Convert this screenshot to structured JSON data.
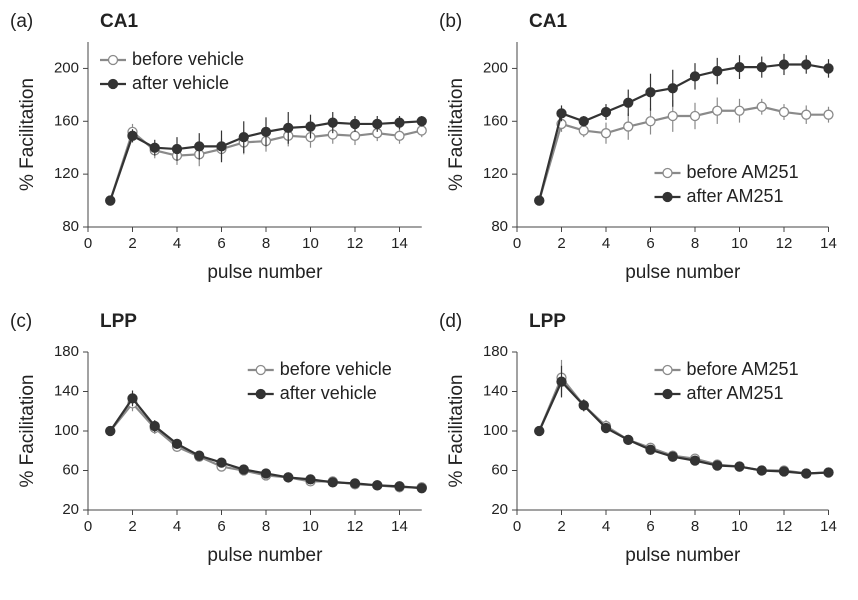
{
  "chart_data": [
    {
      "type": "line",
      "panel": "(a)",
      "title": "CA1",
      "x_label": "pulse number",
      "y_label": "% Facilitation",
      "x": [
        1,
        2,
        3,
        4,
        5,
        6,
        7,
        8,
        9,
        10,
        11,
        12,
        13,
        14,
        15
      ],
      "xlim": [
        0,
        15
      ],
      "xticks": [
        0,
        2,
        4,
        6,
        8,
        10,
        12,
        14
      ],
      "ylim": [
        80,
        220
      ],
      "yticks": [
        80,
        120,
        160,
        200
      ],
      "legend": "top-left",
      "series": [
        {
          "name": "before vehicle",
          "color": "#8a8a8a",
          "marker_fill": "#ffffff",
          "values": [
            100,
            152,
            138,
            134,
            135,
            139,
            144,
            145,
            149,
            148,
            150,
            149,
            151,
            149,
            153
          ],
          "errors": [
            0,
            6,
            6,
            7,
            9,
            8,
            9,
            8,
            8,
            8,
            7,
            7,
            6,
            6,
            5
          ]
        },
        {
          "name": "after vehicle",
          "color": "#333333",
          "marker_fill": "#333333",
          "values": [
            100,
            149,
            140,
            139,
            141,
            141,
            148,
            152,
            155,
            156,
            159,
            158,
            158,
            159,
            160
          ],
          "errors": [
            0,
            5,
            6,
            9,
            10,
            12,
            12,
            11,
            12,
            9,
            8,
            6,
            6,
            5,
            4
          ]
        }
      ]
    },
    {
      "type": "line",
      "panel": "(b)",
      "title": "CA1",
      "x_label": "pulse number",
      "y_label": "% Facilitation",
      "x": [
        1,
        2,
        3,
        4,
        5,
        6,
        7,
        8,
        9,
        10,
        11,
        12,
        13,
        14
      ],
      "xlim": [
        0,
        14
      ],
      "xticks": [
        0,
        2,
        4,
        6,
        8,
        10,
        12,
        14
      ],
      "ylim": [
        80,
        220
      ],
      "yticks": [
        80,
        120,
        160,
        200
      ],
      "legend": "bottom-right",
      "series": [
        {
          "name": "before AM251",
          "color": "#8a8a8a",
          "marker_fill": "#ffffff",
          "values": [
            100,
            158,
            153,
            151,
            156,
            160,
            164,
            164,
            168,
            168,
            171,
            167,
            165,
            165
          ],
          "errors": [
            0,
            6,
            5,
            8,
            10,
            10,
            12,
            10,
            10,
            9,
            6,
            6,
            7,
            6
          ]
        },
        {
          "name": "after AM251",
          "color": "#333333",
          "marker_fill": "#333333",
          "values": [
            100,
            166,
            160,
            167,
            174,
            182,
            185,
            194,
            198,
            201,
            201,
            203,
            203,
            200
          ],
          "errors": [
            0,
            6,
            4,
            6,
            10,
            14,
            14,
            10,
            10,
            9,
            8,
            8,
            7,
            7
          ]
        }
      ]
    },
    {
      "type": "line",
      "panel": "(c)",
      "title": "LPP",
      "x_label": "pulse number",
      "y_label": "% Facilitation",
      "x": [
        1,
        2,
        3,
        4,
        5,
        6,
        7,
        8,
        9,
        10,
        11,
        12,
        13,
        14,
        15
      ],
      "xlim": [
        0,
        15
      ],
      "xticks": [
        0,
        2,
        4,
        6,
        8,
        10,
        12,
        14
      ],
      "ylim": [
        20,
        180
      ],
      "yticks": [
        20,
        60,
        100,
        140,
        180
      ],
      "legend": "top-right",
      "series": [
        {
          "name": "before vehicle",
          "color": "#8a8a8a",
          "marker_fill": "#ffffff",
          "values": [
            100,
            128,
            103,
            84,
            74,
            64,
            60,
            55,
            53,
            49,
            49,
            46,
            45,
            43,
            43
          ],
          "errors": [
            0,
            8,
            6,
            5,
            4,
            4,
            3,
            3,
            3,
            3,
            2,
            2,
            2,
            2,
            2
          ]
        },
        {
          "name": "after vehicle",
          "color": "#333333",
          "marker_fill": "#333333",
          "values": [
            100,
            133,
            105,
            87,
            75,
            68,
            61,
            57,
            53,
            51,
            48,
            47,
            45,
            44,
            42
          ],
          "errors": [
            0,
            8,
            6,
            5,
            4,
            4,
            3,
            3,
            3,
            3,
            2,
            2,
            2,
            2,
            2
          ]
        }
      ]
    },
    {
      "type": "line",
      "panel": "(d)",
      "title": "LPP",
      "x_label": "pulse number",
      "y_label": "% Facilitation",
      "x": [
        1,
        2,
        3,
        4,
        5,
        6,
        7,
        8,
        9,
        10,
        11,
        12,
        13,
        14
      ],
      "xlim": [
        0,
        14
      ],
      "xticks": [
        0,
        2,
        4,
        6,
        8,
        10,
        12,
        14
      ],
      "ylim": [
        20,
        180
      ],
      "yticks": [
        20,
        60,
        100,
        140,
        180
      ],
      "legend": "top-right",
      "series": [
        {
          "name": "before AM251",
          "color": "#8a8a8a",
          "marker_fill": "#ffffff",
          "values": [
            100,
            154,
            126,
            105,
            91,
            83,
            75,
            72,
            66,
            64,
            60,
            60,
            57,
            58
          ],
          "errors": [
            0,
            18,
            6,
            6,
            3,
            3,
            3,
            3,
            2,
            2,
            2,
            2,
            2,
            2
          ]
        },
        {
          "name": "after AM251",
          "color": "#333333",
          "marker_fill": "#333333",
          "values": [
            100,
            150,
            126,
            103,
            91,
            81,
            74,
            70,
            65,
            64,
            60,
            59,
            57,
            58
          ],
          "errors": [
            0,
            16,
            6,
            5,
            3,
            3,
            3,
            3,
            2,
            2,
            2,
            2,
            2,
            2
          ]
        }
      ]
    }
  ]
}
